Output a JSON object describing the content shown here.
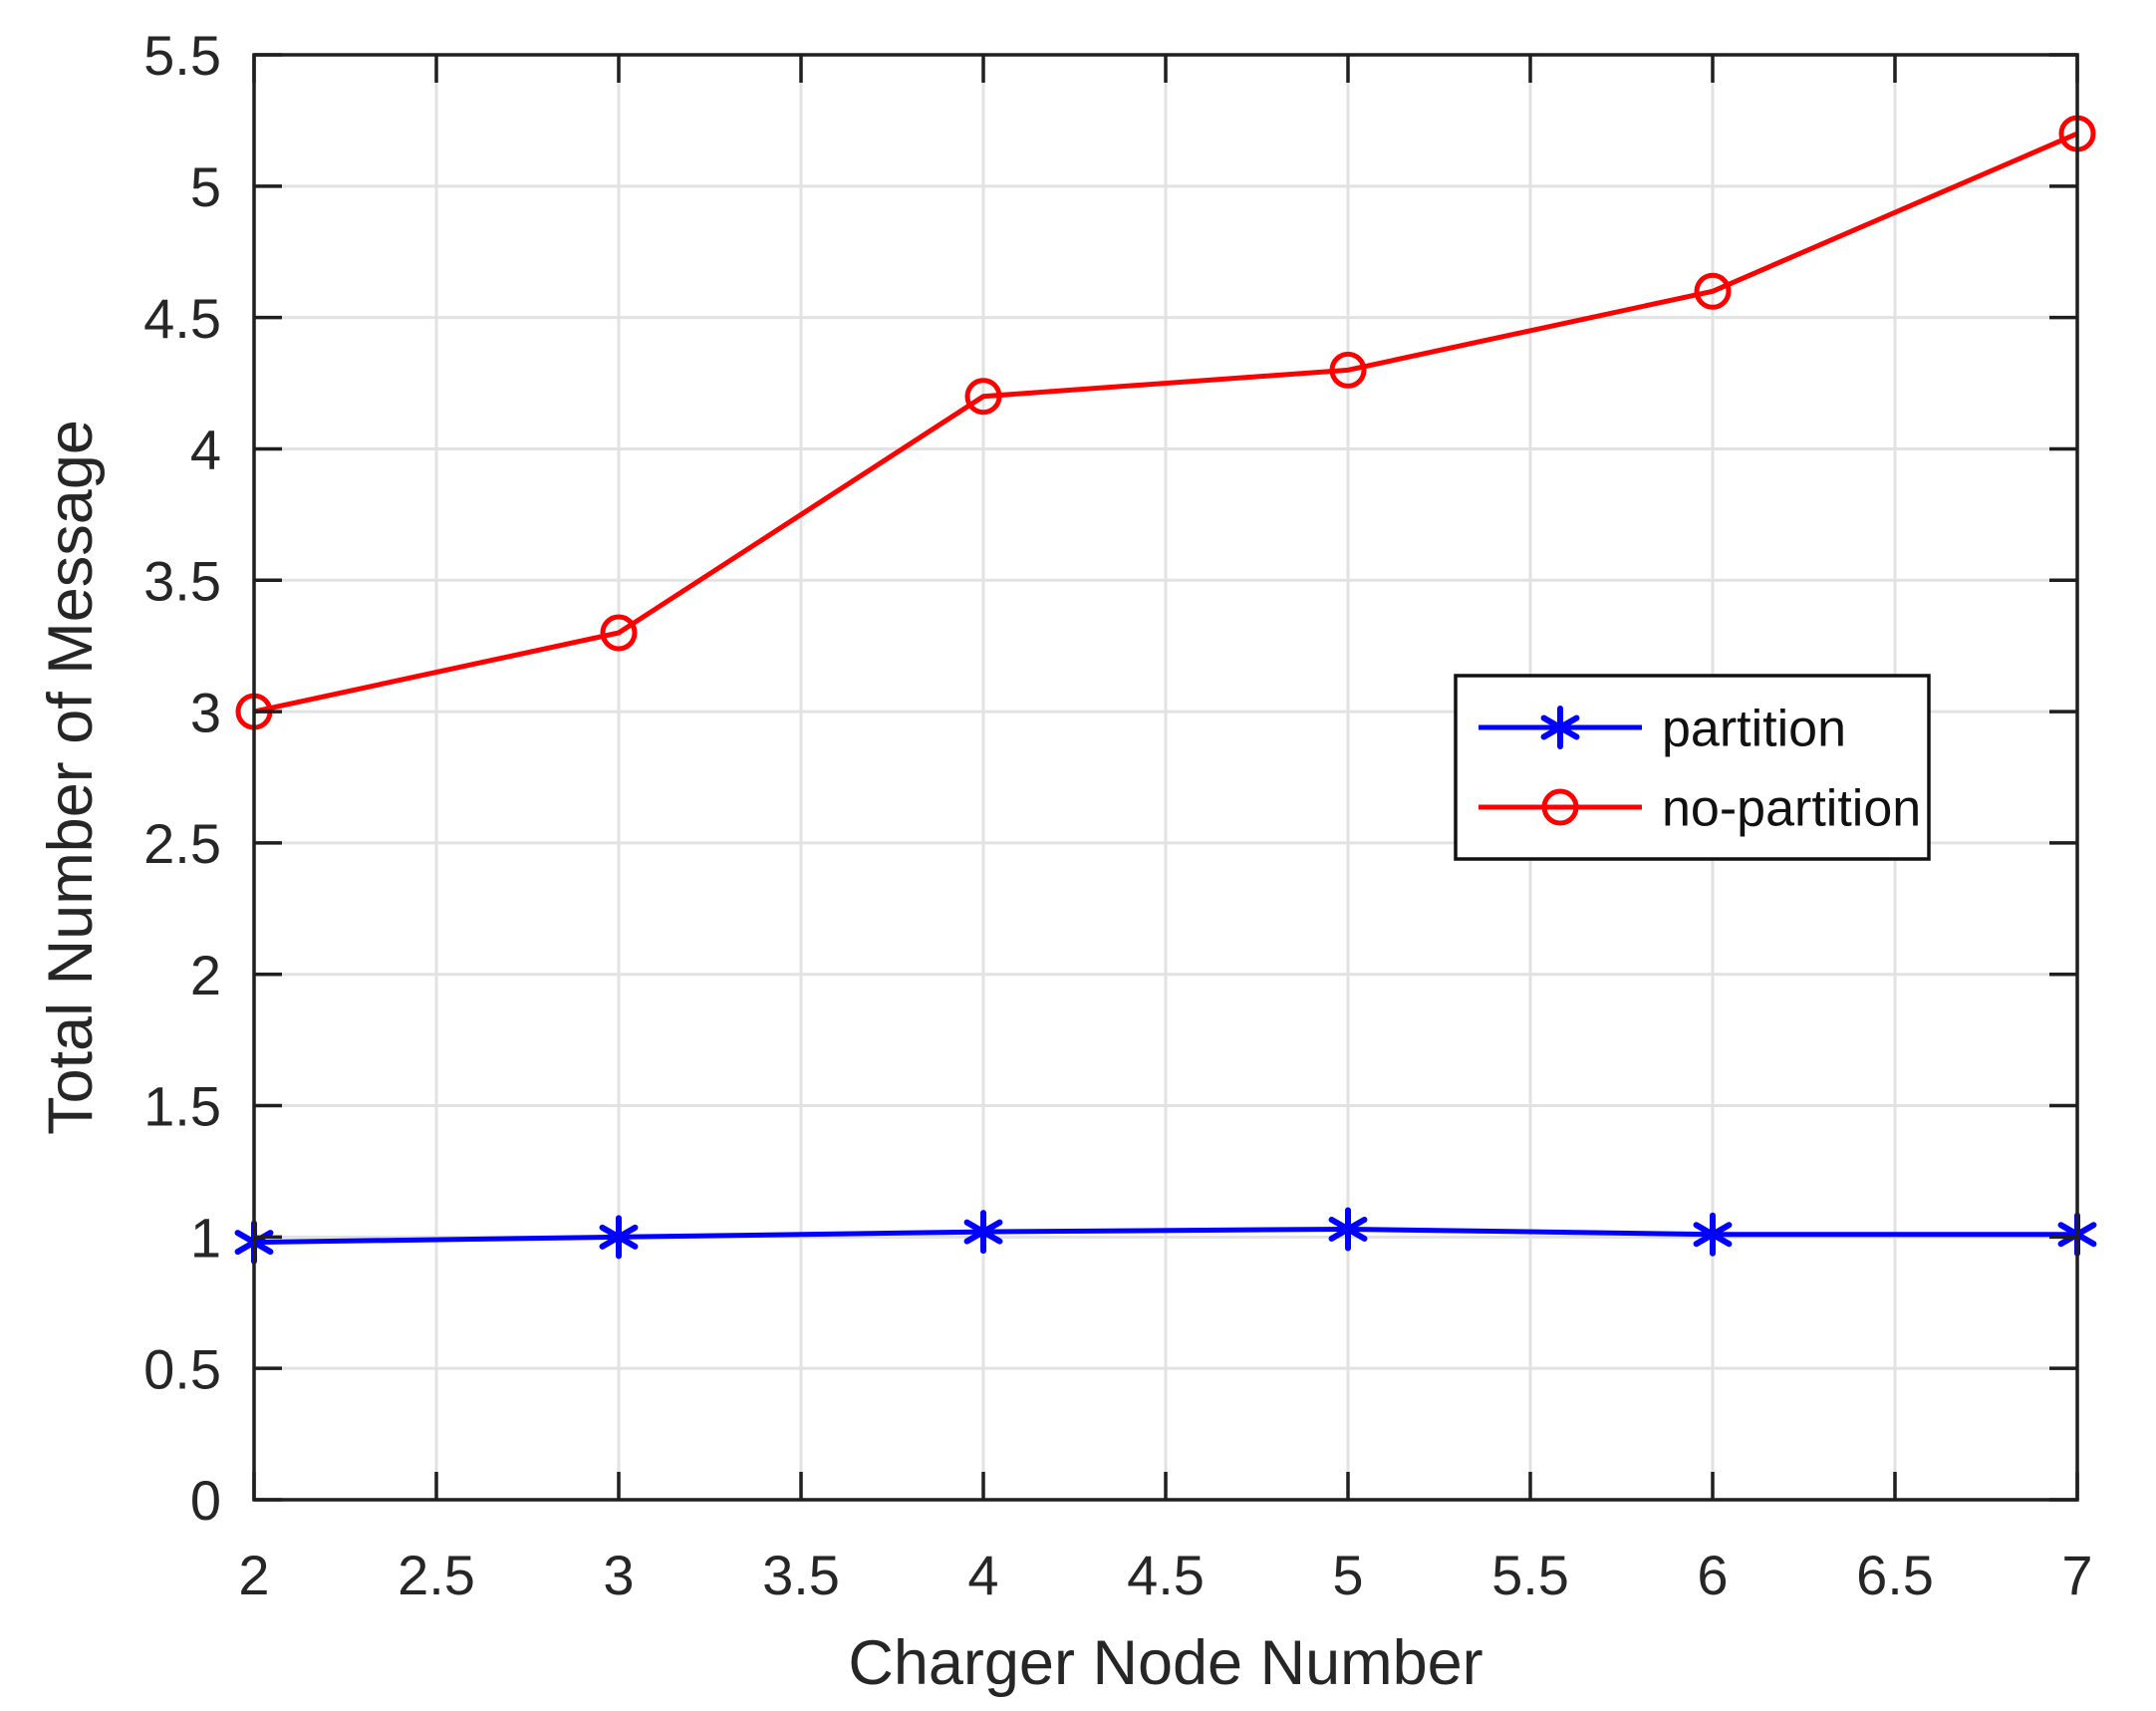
{
  "figure": {
    "background": "#ffffff",
    "axes_color": "#1f1f1f",
    "grid_color": "#e2e2e2",
    "tick_label_color": "#262626"
  },
  "chart_data": {
    "type": "line",
    "x": [
      2,
      3,
      4,
      5,
      6,
      7
    ],
    "series": [
      {
        "name": "partition",
        "color": "#0000ff",
        "marker": "asterisk",
        "values": [
          0.98,
          1.0,
          1.02,
          1.03,
          1.01,
          1.01
        ]
      },
      {
        "name": "no-partition",
        "color": "#ff0000",
        "marker": "circle",
        "values": [
          3.0,
          3.3,
          4.2,
          4.3,
          4.6,
          5.2
        ]
      }
    ],
    "title": "",
    "xlabel": "Charger Node Number",
    "ylabel": "Total Number of Message",
    "xlim": [
      2,
      7
    ],
    "ylim": [
      0,
      5.5
    ],
    "xticks": [
      2,
      2.5,
      3,
      3.5,
      4,
      4.5,
      5,
      5.5,
      6,
      6.5,
      7
    ],
    "yticks": [
      0,
      0.5,
      1,
      1.5,
      2,
      2.5,
      3,
      3.5,
      4,
      4.5,
      5,
      5.5
    ],
    "xtick_labels": [
      "2",
      "2.5",
      "3",
      "3.5",
      "4",
      "4.5",
      "5",
      "5.5",
      "6",
      "6.5",
      "7"
    ],
    "ytick_labels": [
      "0",
      "0.5",
      "1",
      "1.5",
      "2",
      "2.5",
      "3",
      "3.5",
      "4",
      "4.5",
      "5",
      "5.5"
    ],
    "grid": true,
    "legend_position": "inside-middle-right",
    "legend_entries": [
      "partition",
      "no-partition"
    ]
  }
}
